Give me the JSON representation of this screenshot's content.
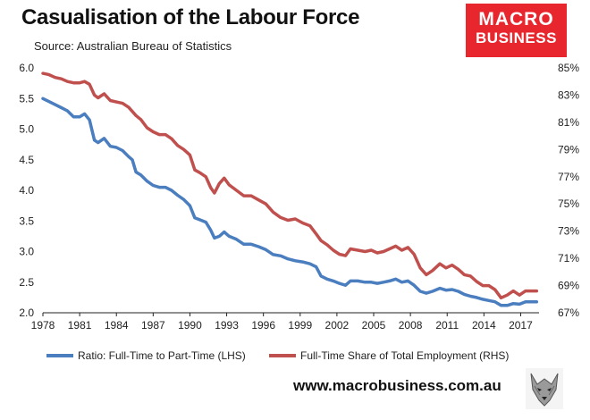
{
  "header": {
    "title": "Casualisation of the Labour Force",
    "subtitle": "Source: Australian Bureau of Statistics"
  },
  "logo": {
    "line1": "MACRO",
    "line2": "BUSINESS",
    "color": "#e8262d"
  },
  "footer": {
    "url": "www.macrobusiness.com.au"
  },
  "chart_data": {
    "type": "line",
    "x_label_years": [
      "1978",
      "1981",
      "1984",
      "1987",
      "1990",
      "1993",
      "1996",
      "1999",
      "2002",
      "2005",
      "2008",
      "2011",
      "2014",
      "2017"
    ],
    "left_axis": {
      "ticks": [
        "2.0",
        "2.5",
        "3.0",
        "3.5",
        "4.0",
        "4.5",
        "5.0",
        "5.5",
        "6.0"
      ],
      "ylim": [
        2.0,
        6.0
      ]
    },
    "right_axis": {
      "ticks": [
        "67%",
        "69%",
        "71%",
        "73%",
        "75%",
        "77%",
        "79%",
        "81%",
        "83%",
        "85%"
      ],
      "ylim": [
        67,
        85
      ]
    },
    "series": [
      {
        "name": "Ratio: Full-Time to Part-Time (LHS)",
        "axis": "left",
        "color": "#4a7ebf",
        "points": [
          [
            1978.0,
            5.5
          ],
          [
            1978.5,
            5.45
          ],
          [
            1979.0,
            5.4
          ],
          [
            1979.5,
            5.35
          ],
          [
            1980.0,
            5.3
          ],
          [
            1980.5,
            5.2
          ],
          [
            1981.0,
            5.2
          ],
          [
            1981.4,
            5.25
          ],
          [
            1981.8,
            5.15
          ],
          [
            1982.2,
            4.82
          ],
          [
            1982.5,
            4.78
          ],
          [
            1983.0,
            4.85
          ],
          [
            1983.5,
            4.72
          ],
          [
            1984.0,
            4.7
          ],
          [
            1984.5,
            4.65
          ],
          [
            1985.0,
            4.55
          ],
          [
            1985.3,
            4.5
          ],
          [
            1985.6,
            4.3
          ],
          [
            1986.0,
            4.25
          ],
          [
            1986.5,
            4.15
          ],
          [
            1987.0,
            4.08
          ],
          [
            1987.5,
            4.05
          ],
          [
            1988.0,
            4.05
          ],
          [
            1988.5,
            4.0
          ],
          [
            1989.0,
            3.92
          ],
          [
            1989.5,
            3.85
          ],
          [
            1990.0,
            3.75
          ],
          [
            1990.4,
            3.55
          ],
          [
            1990.8,
            3.52
          ],
          [
            1991.3,
            3.48
          ],
          [
            1991.7,
            3.35
          ],
          [
            1992.0,
            3.22
          ],
          [
            1992.4,
            3.25
          ],
          [
            1992.8,
            3.32
          ],
          [
            1993.2,
            3.25
          ],
          [
            1993.8,
            3.2
          ],
          [
            1994.4,
            3.12
          ],
          [
            1995.0,
            3.12
          ],
          [
            1995.6,
            3.08
          ],
          [
            1996.2,
            3.03
          ],
          [
            1996.8,
            2.95
          ],
          [
            1997.4,
            2.93
          ],
          [
            1998.0,
            2.88
          ],
          [
            1998.6,
            2.85
          ],
          [
            1999.2,
            2.83
          ],
          [
            1999.8,
            2.8
          ],
          [
            2000.3,
            2.75
          ],
          [
            2000.7,
            2.6
          ],
          [
            2001.2,
            2.55
          ],
          [
            2001.7,
            2.52
          ],
          [
            2002.2,
            2.48
          ],
          [
            2002.7,
            2.45
          ],
          [
            2003.1,
            2.52
          ],
          [
            2003.7,
            2.52
          ],
          [
            2004.3,
            2.5
          ],
          [
            2004.8,
            2.5
          ],
          [
            2005.3,
            2.48
          ],
          [
            2005.8,
            2.5
          ],
          [
            2006.3,
            2.52
          ],
          [
            2006.8,
            2.55
          ],
          [
            2007.3,
            2.5
          ],
          [
            2007.8,
            2.52
          ],
          [
            2008.3,
            2.45
          ],
          [
            2008.8,
            2.35
          ],
          [
            2009.3,
            2.32
          ],
          [
            2009.8,
            2.35
          ],
          [
            2010.4,
            2.4
          ],
          [
            2010.9,
            2.37
          ],
          [
            2011.4,
            2.38
          ],
          [
            2011.9,
            2.35
          ],
          [
            2012.4,
            2.3
          ],
          [
            2012.9,
            2.27
          ],
          [
            2013.4,
            2.25
          ],
          [
            2013.9,
            2.22
          ],
          [
            2014.4,
            2.2
          ],
          [
            2014.9,
            2.18
          ],
          [
            2015.4,
            2.12
          ],
          [
            2015.9,
            2.12
          ],
          [
            2016.4,
            2.15
          ],
          [
            2016.9,
            2.14
          ],
          [
            2017.4,
            2.18
          ],
          [
            2017.9,
            2.18
          ],
          [
            2018.3,
            2.18
          ]
        ]
      },
      {
        "name": "Full-Time Share of Total Employment (RHS)",
        "axis": "right",
        "color": "#c0504d",
        "points": [
          [
            1978.0,
            84.6
          ],
          [
            1978.5,
            84.5
          ],
          [
            1979.0,
            84.3
          ],
          [
            1979.5,
            84.2
          ],
          [
            1980.0,
            84.0
          ],
          [
            1980.5,
            83.9
          ],
          [
            1981.0,
            83.9
          ],
          [
            1981.4,
            84.0
          ],
          [
            1981.8,
            83.8
          ],
          [
            1982.2,
            83.0
          ],
          [
            1982.5,
            82.8
          ],
          [
            1983.0,
            83.1
          ],
          [
            1983.5,
            82.6
          ],
          [
            1984.0,
            82.5
          ],
          [
            1984.5,
            82.4
          ],
          [
            1985.0,
            82.1
          ],
          [
            1985.3,
            81.8
          ],
          [
            1985.6,
            81.5
          ],
          [
            1986.0,
            81.2
          ],
          [
            1986.5,
            80.6
          ],
          [
            1987.0,
            80.3
          ],
          [
            1987.5,
            80.1
          ],
          [
            1988.0,
            80.1
          ],
          [
            1988.5,
            79.8
          ],
          [
            1989.0,
            79.3
          ],
          [
            1989.5,
            79.0
          ],
          [
            1990.0,
            78.6
          ],
          [
            1990.4,
            77.5
          ],
          [
            1990.8,
            77.3
          ],
          [
            1991.3,
            77.0
          ],
          [
            1991.7,
            76.2
          ],
          [
            1992.0,
            75.8
          ],
          [
            1992.4,
            76.5
          ],
          [
            1992.8,
            76.9
          ],
          [
            1993.2,
            76.4
          ],
          [
            1993.8,
            76.0
          ],
          [
            1994.4,
            75.6
          ],
          [
            1995.0,
            75.6
          ],
          [
            1995.6,
            75.3
          ],
          [
            1996.2,
            75.0
          ],
          [
            1996.8,
            74.4
          ],
          [
            1997.4,
            74.0
          ],
          [
            1998.0,
            73.8
          ],
          [
            1998.6,
            73.9
          ],
          [
            1999.2,
            73.6
          ],
          [
            1999.8,
            73.4
          ],
          [
            2000.3,
            72.8
          ],
          [
            2000.7,
            72.3
          ],
          [
            2001.2,
            72.0
          ],
          [
            2001.7,
            71.6
          ],
          [
            2002.2,
            71.3
          ],
          [
            2002.7,
            71.2
          ],
          [
            2003.1,
            71.7
          ],
          [
            2003.7,
            71.6
          ],
          [
            2004.3,
            71.5
          ],
          [
            2004.8,
            71.6
          ],
          [
            2005.3,
            71.4
          ],
          [
            2005.8,
            71.5
          ],
          [
            2006.3,
            71.7
          ],
          [
            2006.8,
            71.9
          ],
          [
            2007.3,
            71.6
          ],
          [
            2007.8,
            71.8
          ],
          [
            2008.3,
            71.3
          ],
          [
            2008.8,
            70.3
          ],
          [
            2009.3,
            69.8
          ],
          [
            2009.8,
            70.1
          ],
          [
            2010.4,
            70.6
          ],
          [
            2010.9,
            70.3
          ],
          [
            2011.4,
            70.5
          ],
          [
            2011.9,
            70.2
          ],
          [
            2012.4,
            69.8
          ],
          [
            2012.9,
            69.7
          ],
          [
            2013.4,
            69.3
          ],
          [
            2013.9,
            69.0
          ],
          [
            2014.4,
            69.0
          ],
          [
            2014.9,
            68.7
          ],
          [
            2015.4,
            68.1
          ],
          [
            2015.9,
            68.3
          ],
          [
            2016.4,
            68.6
          ],
          [
            2016.9,
            68.3
          ],
          [
            2017.4,
            68.6
          ],
          [
            2017.9,
            68.6
          ],
          [
            2018.3,
            68.6
          ]
        ]
      }
    ],
    "xlim": [
      1978,
      2018.5
    ],
    "grid": false,
    "legend": "bottom"
  }
}
